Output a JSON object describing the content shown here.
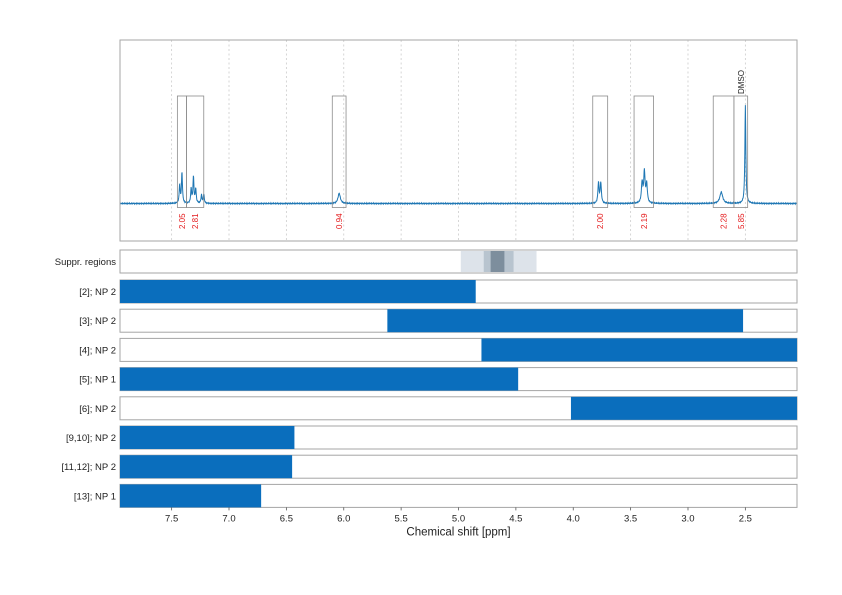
{
  "chart_data": {
    "type": "bar",
    "xlabel": "Chemical shift [ppm]",
    "x_ticks": [
      "7.5",
      "7.0",
      "6.5",
      "6.0",
      "5.5",
      "5.0",
      "4.5",
      "4.0",
      "3.5",
      "3.0",
      "2.5"
    ],
    "x_tick_values": [
      7.5,
      7.0,
      6.5,
      6.0,
      5.5,
      5.0,
      4.5,
      4.0,
      3.5,
      3.0,
      2.5
    ],
    "xlim": [
      7.95,
      2.05
    ],
    "x_reversed": true,
    "grid": true,
    "spectrum": {
      "color": "#1f77b4",
      "peaks": [
        {
          "ppm": 7.43,
          "height": 0.18,
          "width": 0.005
        },
        {
          "ppm": 7.41,
          "height": 0.3,
          "width": 0.005
        },
        {
          "ppm": 7.33,
          "height": 0.14,
          "width": 0.005
        },
        {
          "ppm": 7.31,
          "height": 0.26,
          "width": 0.005
        },
        {
          "ppm": 7.29,
          "height": 0.14,
          "width": 0.005
        },
        {
          "ppm": 7.24,
          "height": 0.08,
          "width": 0.005
        },
        {
          "ppm": 7.22,
          "height": 0.09,
          "width": 0.005
        },
        {
          "ppm": 6.04,
          "height": 0.1,
          "width": 0.012
        },
        {
          "ppm": 3.78,
          "height": 0.2,
          "width": 0.006
        },
        {
          "ppm": 3.76,
          "height": 0.2,
          "width": 0.006
        },
        {
          "ppm": 3.4,
          "height": 0.2,
          "width": 0.007
        },
        {
          "ppm": 3.38,
          "height": 0.3,
          "width": 0.007
        },
        {
          "ppm": 3.36,
          "height": 0.18,
          "width": 0.007
        },
        {
          "ppm": 2.71,
          "height": 0.11,
          "width": 0.015
        },
        {
          "ppm": 2.5,
          "height": 0.95,
          "width": 0.005
        }
      ]
    },
    "integration_regions": [
      {
        "from": 7.45,
        "to": 7.37,
        "label": "2.05"
      },
      {
        "from": 7.37,
        "to": 7.22,
        "label": "2.81"
      },
      {
        "from": 6.1,
        "to": 5.98,
        "label": "0.94"
      },
      {
        "from": 3.83,
        "to": 3.7,
        "label": "2.00"
      },
      {
        "from": 3.47,
        "to": 3.3,
        "label": "2.19"
      },
      {
        "from": 2.78,
        "to": 2.6,
        "label": "2.28"
      },
      {
        "from": 2.6,
        "to": 2.48,
        "label": "5.85"
      }
    ],
    "annotations": [
      {
        "ppm": 2.54,
        "label": "DMSO"
      }
    ],
    "suppression": {
      "label": "Suppr. regions",
      "bands": [
        {
          "from": 4.98,
          "to": 4.32,
          "color": "#dde3ea"
        },
        {
          "from": 4.78,
          "to": 4.52,
          "color": "#b8c4cf"
        },
        {
          "from": 4.72,
          "to": 4.6,
          "color": "#7d8e9d"
        }
      ]
    },
    "series": [
      {
        "name": "[2]; NP 2",
        "range": [
          7.95,
          4.85
        ]
      },
      {
        "name": "[3]; NP 2",
        "range": [
          5.62,
          2.52
        ]
      },
      {
        "name": "[4]; NP 2",
        "range": [
          4.8,
          2.05
        ]
      },
      {
        "name": "[5]; NP 1",
        "range": [
          7.95,
          4.48
        ]
      },
      {
        "name": "[6]; NP 2",
        "range": [
          4.02,
          2.05
        ]
      },
      {
        "name": "[9,10]; NP 2",
        "range": [
          7.95,
          6.43
        ]
      },
      {
        "name": "[11,12]; NP 2",
        "range": [
          7.95,
          6.45
        ]
      },
      {
        "name": "[13]; NP 1",
        "range": [
          7.95,
          6.72
        ]
      }
    ],
    "bar_color": "#0a6ebd"
  }
}
